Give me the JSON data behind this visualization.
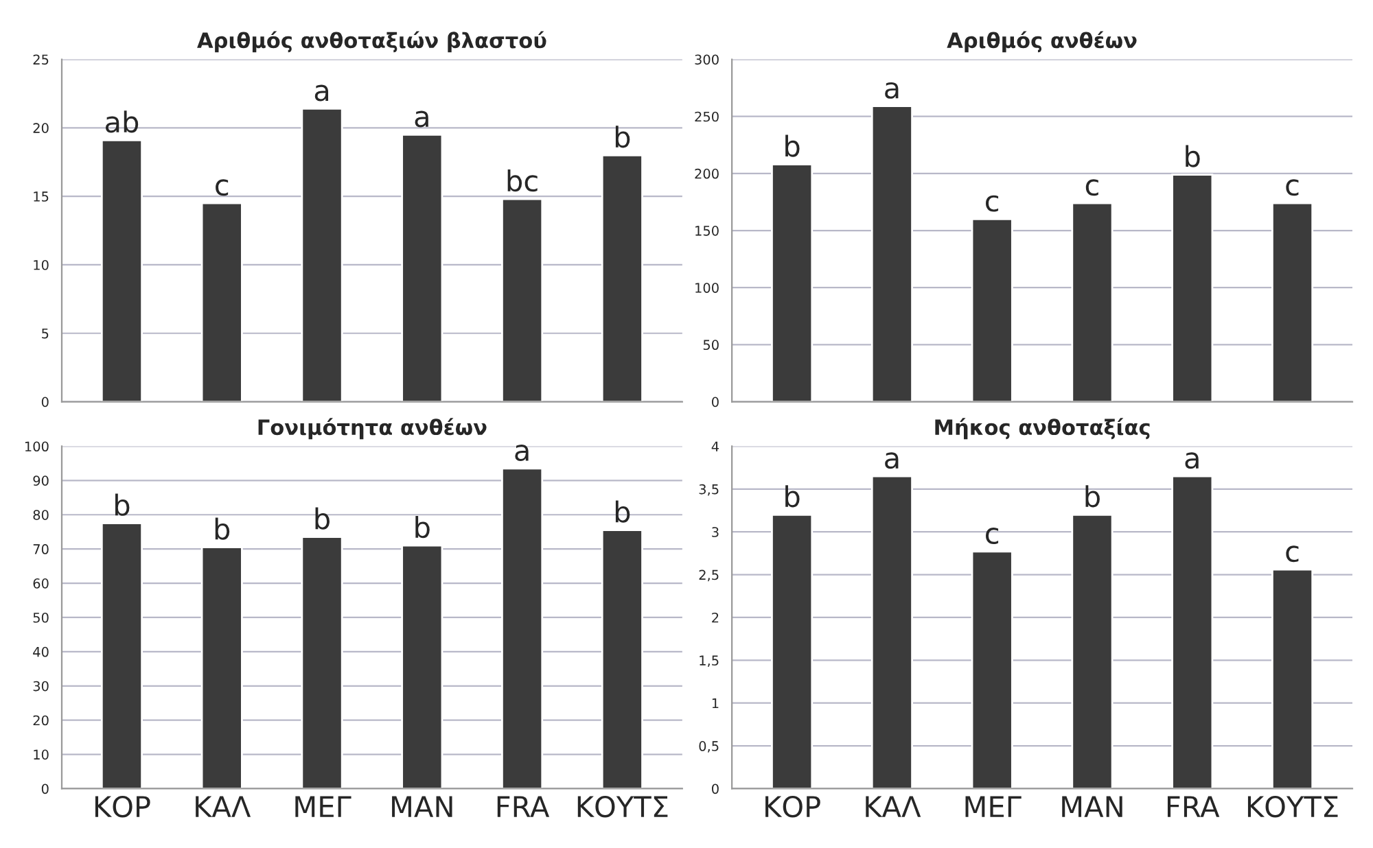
{
  "chart_data": [
    {
      "type": "bar",
      "title": "Αριθμός ανθοταξιών βλαστού",
      "categories": [
        null,
        null,
        null,
        null,
        null,
        null
      ],
      "tick_labels": "y",
      "color": "#3b3b3b",
      "values": [
        19.1,
        14.5,
        21.4,
        19.5,
        14.8,
        18
      ],
      "ylim": [
        0,
        25
      ],
      "yticks": [
        0,
        5,
        10,
        15,
        20,
        25
      ],
      "grid": "y",
      "value_labels": [
        "ab",
        "c",
        "a",
        "a",
        "bc",
        "b"
      ]
    },
    {
      "type": "bar",
      "title": "Αριθμός ανθέων",
      "categories": [
        null,
        null,
        null,
        null,
        null,
        null
      ],
      "tick_labels": "y",
      "color": "#3b3b3b",
      "values": [
        208,
        259,
        160,
        174,
        199,
        174
      ],
      "ylim": [
        0,
        300
      ],
      "yticks": [
        0,
        50,
        100,
        150,
        200,
        250,
        300
      ],
      "grid": "y",
      "value_labels": [
        "b",
        "a",
        "c",
        "c",
        "b",
        "c"
      ]
    },
    {
      "type": "bar",
      "title": "Γονιμότητα ανθέων",
      "categories": [
        "ΚΟΡ",
        "ΚΑΛ",
        "ΜΕΓ",
        "ΜΑΝ",
        "FRA",
        "ΚΟΥΤΣ"
      ],
      "color": "#3b3b3b",
      "values": [
        77.5,
        70.5,
        73.5,
        71,
        93.5,
        75.5
      ],
      "value_labels": [
        "b",
        "b",
        "b",
        "b",
        "a",
        "b"
      ],
      "ylim": [
        0,
        100
      ],
      "yticks": [
        0,
        10,
        20,
        30,
        40,
        50,
        60,
        70,
        80,
        90,
        100
      ],
      "grid": "y"
    },
    {
      "type": "bar",
      "title": "Μήκος ανθοταξίας",
      "categories": [
        "ΚΟΡ",
        "ΚΑΛ",
        "ΜΕΓ",
        "ΜΑΝ",
        "FRA",
        "ΚΟΥΤΣ"
      ],
      "color": "#3b3b3b",
      "values": [
        3.2,
        3.65,
        2.77,
        3.2,
        3.65,
        2.56
      ],
      "value_labels": [
        "b",
        "a",
        "c",
        "b",
        "a",
        "c"
      ],
      "ylim": [
        0,
        4
      ],
      "yticks": [
        0,
        {
          "value": 0.5,
          "label": "0,5"
        },
        1,
        {
          "value": 1.5,
          "label": "1,5"
        },
        2,
        {
          "value": 2.5,
          "label": "2,5"
        },
        3,
        {
          "value": 3.5,
          "label": "3,5"
        },
        4
      ],
      "grid": "y"
    }
  ]
}
